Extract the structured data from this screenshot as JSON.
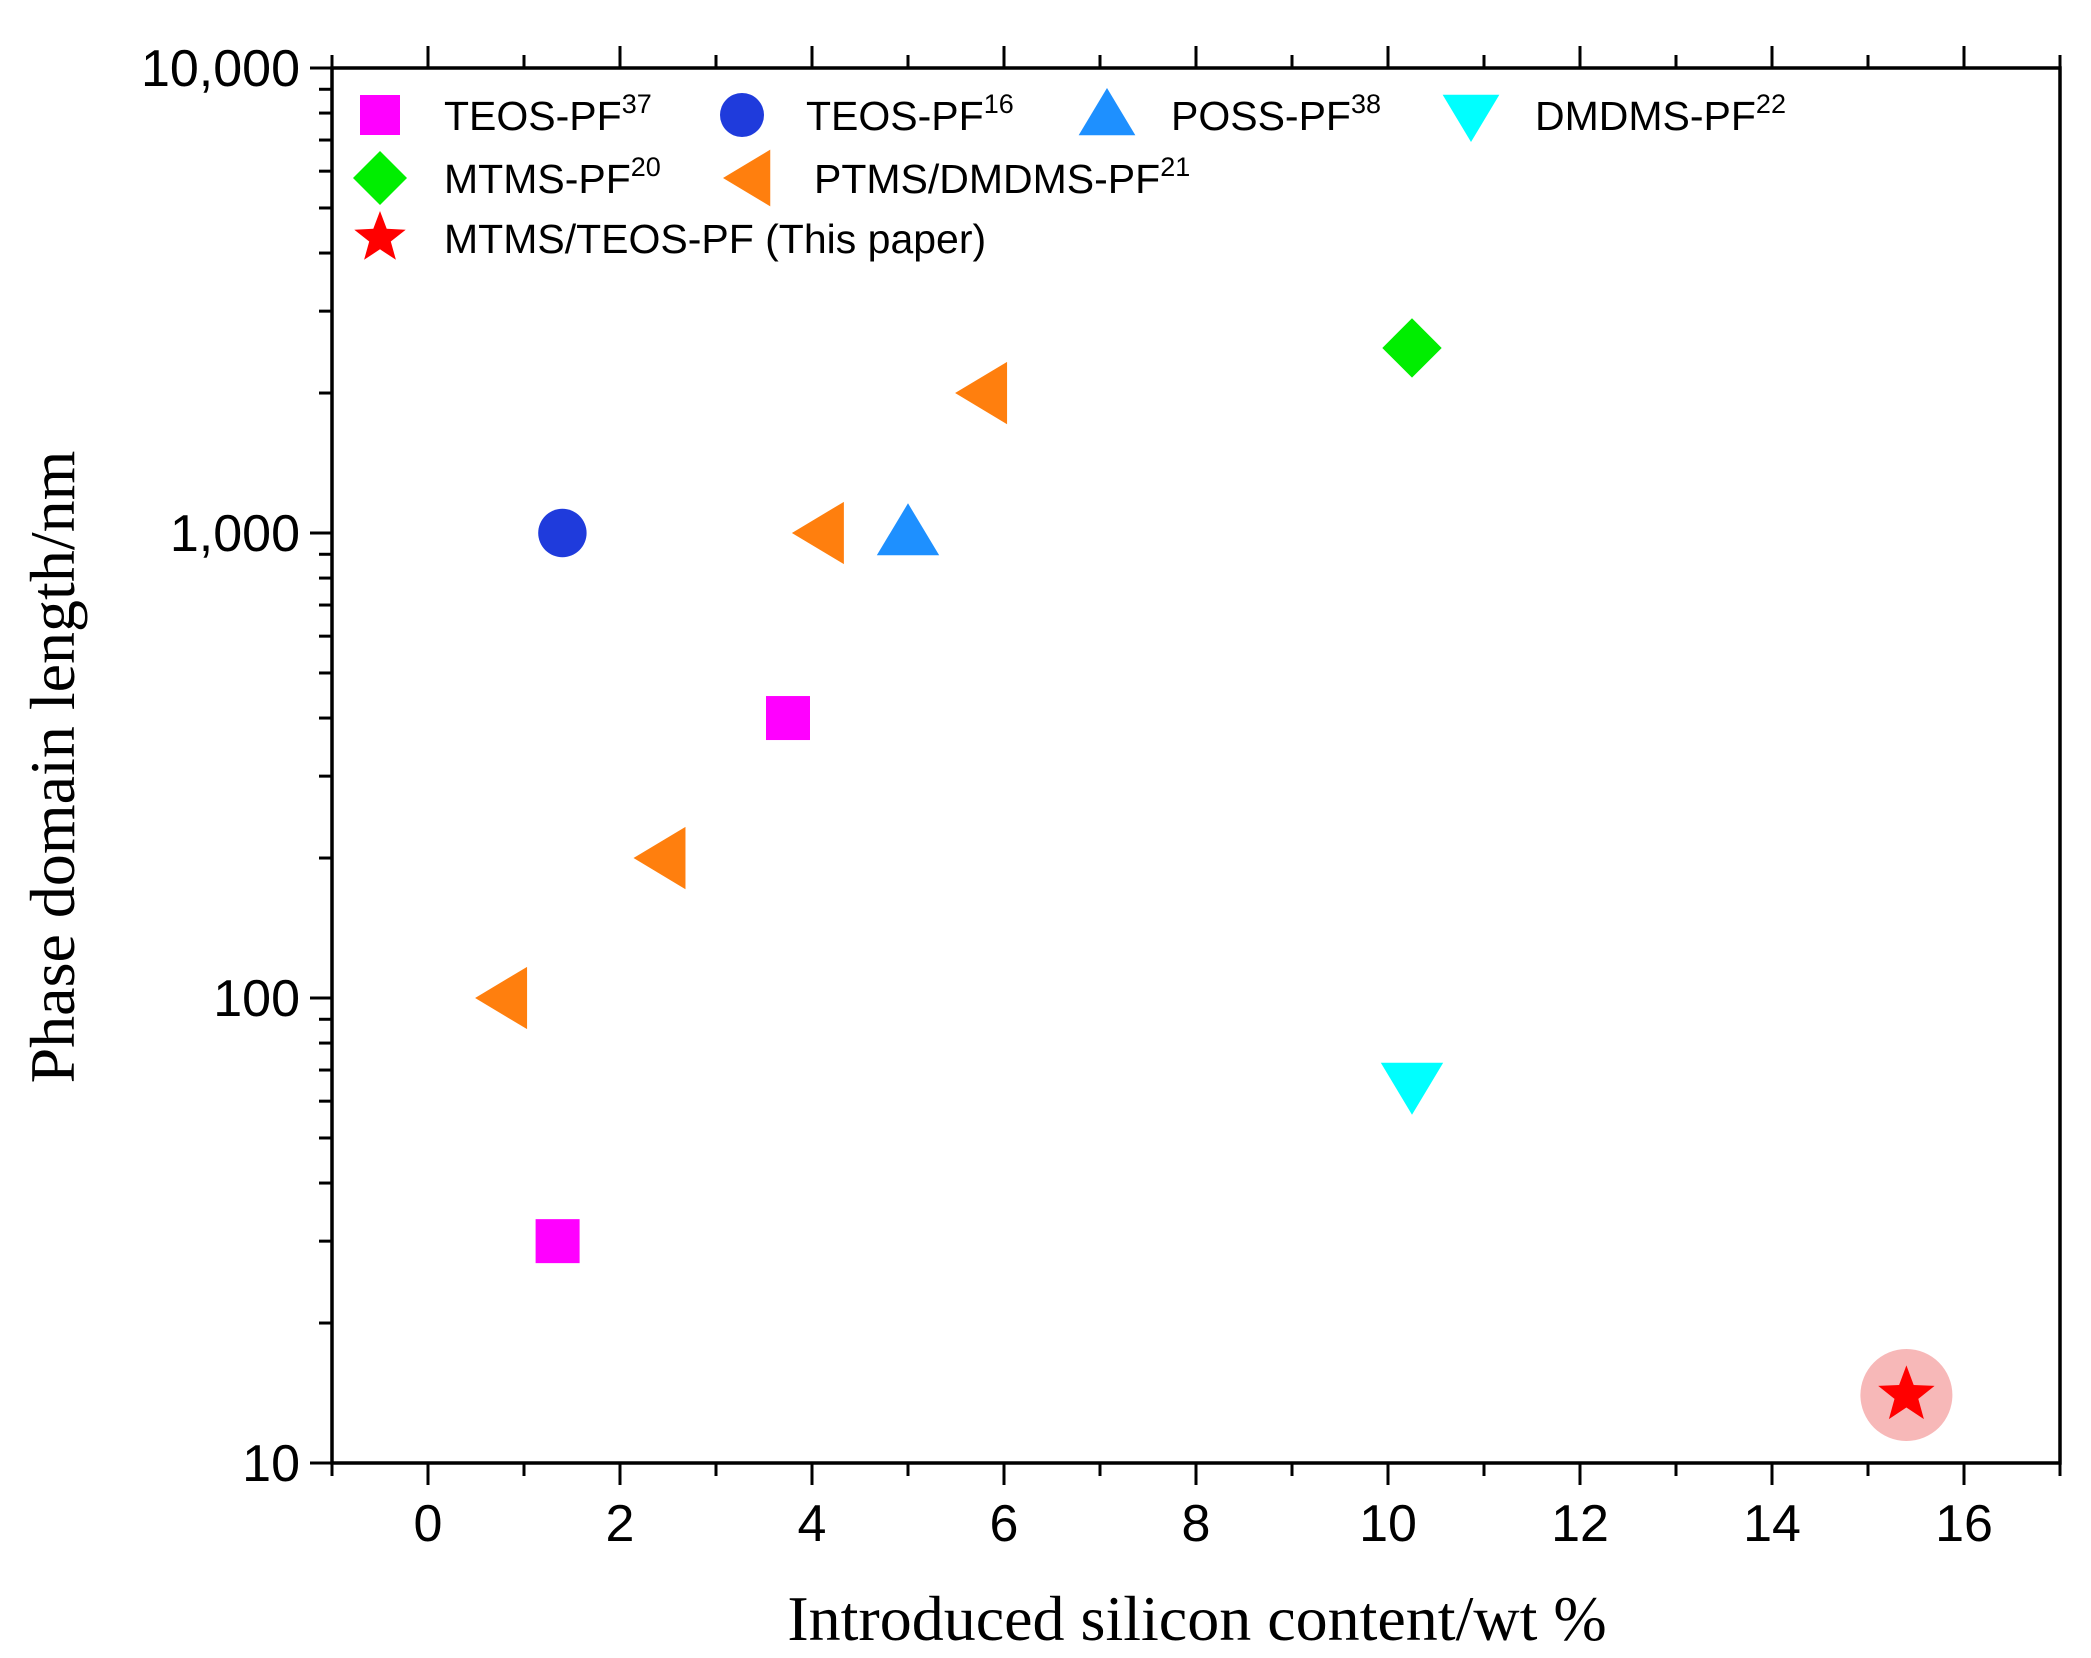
{
  "chart_data": {
    "type": "scatter",
    "title": "",
    "xlabel": "Introduced silicon content/wt %",
    "ylabel": "Phase domain length/nm",
    "xlim": [
      -1,
      17
    ],
    "ylim": [
      10,
      10000
    ],
    "yscale": "log",
    "x_ticks": [
      "0",
      "2",
      "4",
      "6",
      "8",
      "10",
      "12",
      "14",
      "16"
    ],
    "y_ticks": [
      "10",
      "100",
      "1,000",
      "10,000"
    ],
    "grid": false,
    "legend_position": "top-left",
    "series": [
      {
        "name": "TEOS-PF",
        "ref": "37",
        "marker": "square",
        "color": "#ff00ff",
        "points": [
          {
            "x": 1.35,
            "y": 30
          },
          {
            "x": 3.75,
            "y": 400
          }
        ]
      },
      {
        "name": "TEOS-PF",
        "ref": "16",
        "marker": "circle",
        "color": "#1f3bdc",
        "points": [
          {
            "x": 1.4,
            "y": 1000
          }
        ]
      },
      {
        "name": "POSS-PF",
        "ref": "38",
        "marker": "triangle-up",
        "color": "#1e90ff",
        "points": [
          {
            "x": 5.0,
            "y": 1000
          }
        ]
      },
      {
        "name": "DMDMS-PF",
        "ref": "22",
        "marker": "triangle-down",
        "color": "#00ffff",
        "points": [
          {
            "x": 10.25,
            "y": 65
          }
        ]
      },
      {
        "name": "MTMS-PF",
        "ref": "20",
        "marker": "diamond",
        "color": "#00ee00",
        "points": [
          {
            "x": 10.25,
            "y": 2500
          }
        ]
      },
      {
        "name": "PTMS/DMDMS-PF",
        "ref": "21",
        "marker": "triangle-left",
        "color": "#ff7f0e",
        "points": [
          {
            "x": 0.8,
            "y": 100
          },
          {
            "x": 2.45,
            "y": 200
          },
          {
            "x": 4.1,
            "y": 1000
          },
          {
            "x": 5.8,
            "y": 2000
          }
        ]
      },
      {
        "name": "MTMS/TEOS-PF (This paper)",
        "ref": "",
        "marker": "star",
        "color": "#ff0000",
        "highlight_color": "#f4a0a0",
        "points": [
          {
            "x": 15.4,
            "y": 14
          }
        ]
      }
    ]
  }
}
